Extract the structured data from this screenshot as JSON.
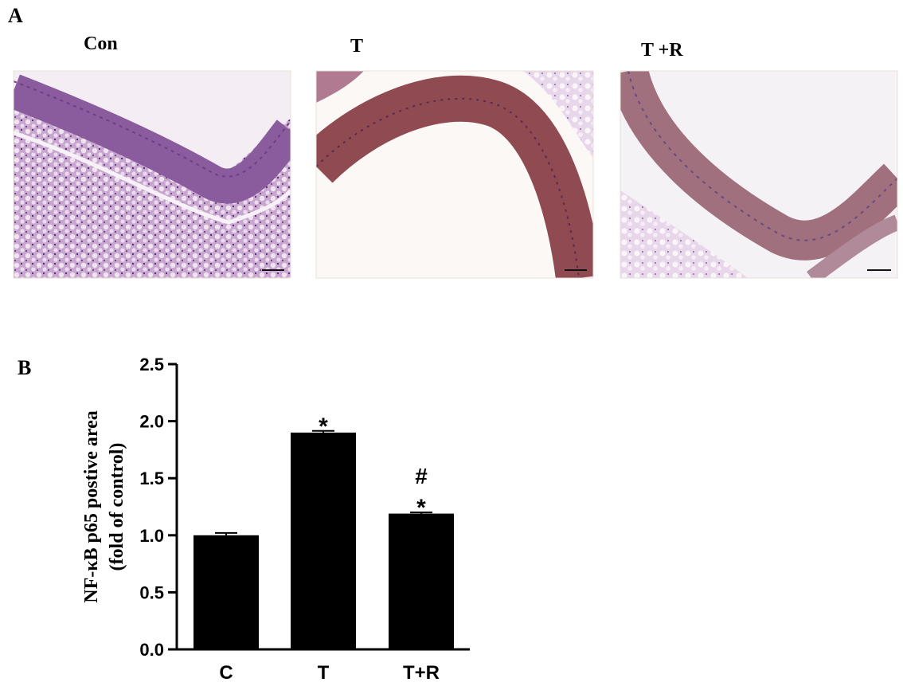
{
  "panel_a": {
    "label": "A",
    "images": [
      {
        "title": "Con"
      },
      {
        "title": "T"
      },
      {
        "title": "T +R"
      }
    ]
  },
  "panel_b_label": "B",
  "chart_data": {
    "type": "bar",
    "ylabel": [
      "NF-κB p65  postive area",
      "(fold of control)"
    ],
    "categories": [
      "C",
      "T",
      "T+R"
    ],
    "values": [
      1.0,
      1.9,
      1.19
    ],
    "errors": [
      0.02,
      0.015,
      0.01
    ],
    "color": "#000000",
    "ylim": [
      0,
      2.5
    ],
    "yticks": [
      {
        "value": 0,
        "label": "0.0"
      },
      0.5,
      {
        "value": 1,
        "label": "1.0"
      },
      1.5,
      {
        "value": 2,
        "label": "2.0"
      },
      2.5
    ],
    "annotations": [
      {
        "text": "*",
        "category": 1
      },
      {
        "text": "#",
        "category": 2
      },
      {
        "text": "*",
        "category": 2
      }
    ]
  }
}
